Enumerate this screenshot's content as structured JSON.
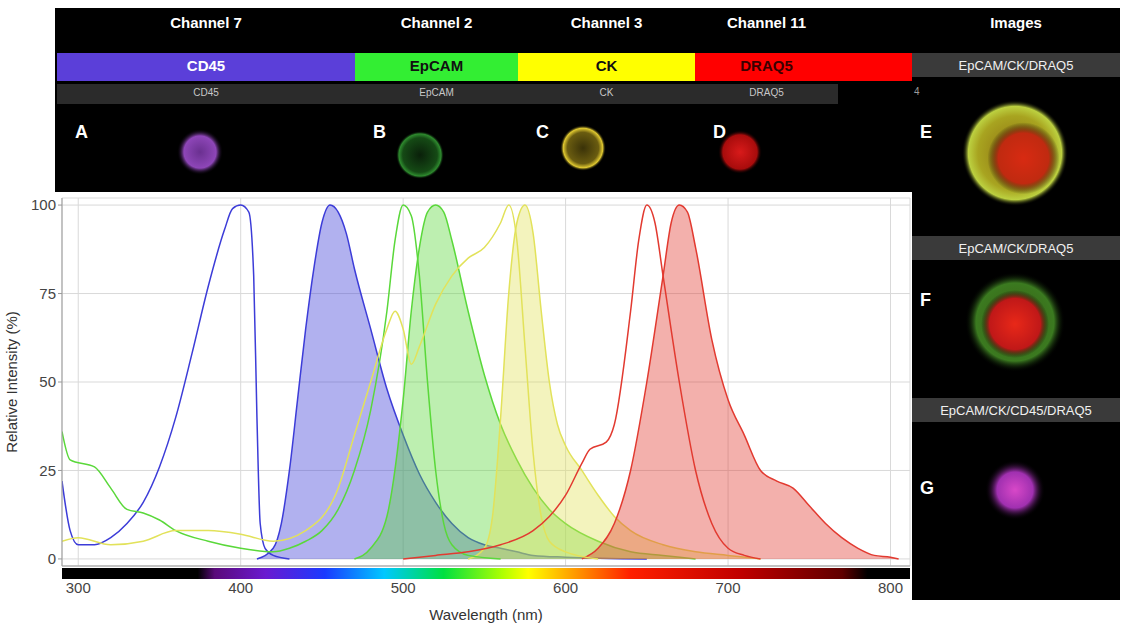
{
  "header": {
    "columns": [
      {
        "channel": "Channel 7",
        "marker": "CD45",
        "sublabel": "CD45",
        "letter": "A"
      },
      {
        "channel": "Channel 2",
        "marker": "EpCAM",
        "sublabel": "EpCAM",
        "letter": "B"
      },
      {
        "channel": "Channel 3",
        "marker": "CK",
        "sublabel": "CK",
        "letter": "C"
      },
      {
        "channel": "Channel 11",
        "marker": "DRAQ5",
        "sublabel": "DRAQ5",
        "letter": "D"
      }
    ],
    "images_title": "Images",
    "images_number": "4"
  },
  "images": [
    {
      "label": "EpCAM/CK/DRAQ5",
      "letter": "E"
    },
    {
      "label": "EpCAM/CK/DRAQ5",
      "letter": "F"
    },
    {
      "label": "EpCAM/CK/CD45/DRAQ5",
      "letter": "G"
    }
  ],
  "chart_data": {
    "type": "line",
    "xlabel": "Wavelength (nm)",
    "ylabel": "Relative Intensity (%)",
    "xlim": [
      290,
      812
    ],
    "xticks": [
      300,
      400,
      500,
      600,
      700,
      800
    ],
    "ylim": [
      -2,
      102
    ],
    "yticks": [
      0,
      25,
      50,
      75,
      100
    ],
    "grid": true,
    "series": [
      {
        "type": "line",
        "color": "#3c3cd8",
        "x": [
          290,
          295,
          300,
          310,
          320,
          330,
          340,
          350,
          360,
          370,
          380,
          390,
          395,
          400,
          405,
          408,
          410,
          412,
          415,
          420,
          430
        ],
        "values": [
          22,
          8,
          4,
          4,
          6,
          10,
          16,
          26,
          40,
          58,
          77,
          93,
          99,
          100,
          98,
          80,
          40,
          10,
          3,
          1,
          0
        ]
      },
      {
        "type": "area",
        "color": "#3c3cd8",
        "x": [
          410,
          420,
          425,
          430,
          435,
          440,
          445,
          450,
          455,
          460,
          465,
          470,
          480,
          490,
          500,
          510,
          520,
          530,
          540,
          550,
          560,
          570,
          580,
          600,
          650
        ],
        "values": [
          0,
          3,
          10,
          25,
          45,
          65,
          82,
          95,
          100,
          98,
          92,
          82,
          65,
          48,
          35,
          24,
          16,
          10,
          6,
          4,
          3,
          2,
          1,
          0.5,
          0
        ]
      },
      {
        "type": "line",
        "color": "#5ad83a",
        "x": [
          290,
          295,
          310,
          320,
          330,
          340,
          350,
          360,
          380,
          400,
          420,
          430,
          440,
          450,
          460,
          470,
          480,
          490,
          495,
          500,
          505,
          510,
          515,
          520,
          525,
          530,
          540,
          560
        ],
        "values": [
          36,
          28,
          26,
          20,
          14,
          13,
          11,
          8,
          5,
          3,
          2,
          3,
          5,
          8,
          14,
          25,
          42,
          70,
          90,
          100,
          97,
          80,
          50,
          25,
          10,
          4,
          1,
          0
        ]
      },
      {
        "type": "area",
        "color": "#5ad83a",
        "x": [
          470,
          480,
          490,
          500,
          505,
          510,
          515,
          520,
          525,
          530,
          540,
          550,
          560,
          570,
          580,
          590,
          600,
          620,
          640,
          660,
          680
        ],
        "values": [
          0,
          3,
          12,
          45,
          70,
          88,
          98,
          100,
          98,
          90,
          70,
          52,
          38,
          28,
          20,
          14,
          10,
          5,
          2,
          1,
          0
        ]
      },
      {
        "type": "line",
        "color": "#e2e25a",
        "x": [
          290,
          300,
          320,
          340,
          360,
          380,
          400,
          420,
          440,
          460,
          470,
          480,
          490,
          495,
          500,
          505,
          510,
          520,
          530,
          540,
          550,
          560,
          565,
          570,
          575,
          580,
          585,
          590,
          600,
          620
        ],
        "values": [
          5,
          6,
          4,
          5,
          8,
          8,
          7,
          5,
          8,
          20,
          35,
          50,
          65,
          70,
          65,
          55,
          60,
          72,
          80,
          85,
          88,
          95,
          100,
          90,
          60,
          30,
          12,
          5,
          2,
          0
        ]
      },
      {
        "type": "area",
        "color": "#e2e25a",
        "x": [
          540,
          550,
          555,
          560,
          565,
          570,
          575,
          580,
          585,
          590,
          595,
          600,
          610,
          620,
          630,
          640,
          660,
          680,
          700,
          720
        ],
        "values": [
          0,
          3,
          12,
          40,
          75,
          95,
          100,
          92,
          70,
          50,
          38,
          32,
          25,
          18,
          12,
          8,
          4,
          2,
          1,
          0
        ]
      },
      {
        "type": "line",
        "color": "#e23a30",
        "x": [
          500,
          520,
          540,
          560,
          580,
          590,
          600,
          610,
          615,
          625,
          630,
          640,
          645,
          650,
          655,
          660,
          670,
          680,
          690,
          700,
          710,
          720
        ],
        "values": [
          0,
          1,
          2,
          4,
          8,
          12,
          18,
          27,
          31,
          33,
          38,
          70,
          90,
          100,
          95,
          80,
          50,
          25,
          10,
          3,
          1,
          0
        ]
      },
      {
        "type": "area",
        "color": "#e23a30",
        "x": [
          610,
          620,
          630,
          640,
          650,
          660,
          665,
          670,
          675,
          680,
          690,
          700,
          710,
          720,
          730,
          740,
          750,
          760,
          770,
          780,
          790,
          800,
          805
        ],
        "values": [
          0,
          3,
          10,
          25,
          50,
          80,
          95,
          100,
          98,
          88,
          62,
          45,
          35,
          25,
          22,
          20,
          15,
          10,
          6,
          3,
          1,
          0.5,
          0
        ]
      }
    ]
  }
}
